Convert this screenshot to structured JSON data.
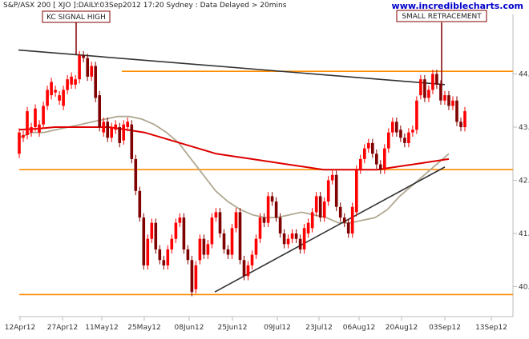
{
  "header": {
    "instrument": "S&P/ASX 200 [ XJO ]:DAILY:03Sep2012 17:20 Sydney : Data Delayed > 20mins",
    "brand": "www.incrediblecharts.com"
  },
  "chart_data": {
    "type": "candlestick",
    "title": "",
    "xlabel": "",
    "ylabel": "",
    "ylim": [
      39.8,
      44.6
    ],
    "x_ticks": [
      "12Apr12",
      "27Apr12",
      "11May12",
      "25May12",
      "08Jun12",
      "25Jun12",
      "09Jul12",
      "23Jul12",
      "06Aug12",
      "20Aug12",
      "03Sep12",
      "13Sep12"
    ],
    "y_ticks": [
      "44.00",
      "43.00",
      "42.00",
      "41.00",
      "40.00"
    ],
    "y_tick_values": [
      44,
      43,
      42,
      41,
      40
    ],
    "grid": false,
    "candles": [
      [
        42.5,
        42.9
      ],
      [
        42.8,
        42.85
      ],
      [
        42.85,
        43.3
      ],
      [
        42.9,
        43.0
      ],
      [
        43.0,
        43.35
      ],
      [
        42.9,
        43.05
      ],
      [
        43.05,
        43.4
      ],
      [
        43.4,
        43.7
      ],
      [
        43.6,
        43.85
      ],
      [
        43.65,
        43.7
      ],
      [
        43.5,
        43.6
      ],
      [
        43.4,
        43.7
      ],
      [
        43.7,
        43.9
      ],
      [
        43.8,
        43.95
      ],
      [
        43.8,
        43.9
      ],
      [
        43.9,
        44.35
      ],
      [
        44.35,
        44.3
      ],
      [
        44.3,
        43.95
      ],
      [
        43.95,
        44.15
      ],
      [
        44.15,
        43.55
      ],
      [
        43.6,
        43.0
      ],
      [
        42.9,
        43.1
      ],
      [
        43.1,
        42.8
      ],
      [
        42.8,
        43.0
      ],
      [
        42.95,
        43.05
      ],
      [
        43.0,
        42.7
      ],
      [
        42.75,
        43.05
      ],
      [
        43.0,
        43.1
      ],
      [
        43.05,
        42.4
      ],
      [
        42.4,
        41.8
      ],
      [
        41.8,
        41.3
      ],
      [
        41.3,
        40.4
      ],
      [
        40.4,
        40.9
      ],
      [
        40.9,
        41.2
      ],
      [
        41.2,
        40.7
      ],
      [
        40.7,
        40.5
      ],
      [
        40.5,
        40.4
      ],
      [
        40.4,
        40.7
      ],
      [
        40.7,
        40.9
      ],
      [
        40.9,
        41.2
      ],
      [
        41.2,
        41.3
      ],
      [
        41.3,
        40.7
      ],
      [
        40.7,
        40.5
      ],
      [
        40.5,
        39.9
      ],
      [
        39.95,
        40.4
      ],
      [
        40.5,
        40.9
      ],
      [
        40.9,
        40.6
      ],
      [
        40.6,
        40.8
      ],
      [
        40.8,
        41.3
      ],
      [
        41.3,
        41.4
      ],
      [
        41.4,
        41.0
      ],
      [
        41.0,
        40.7
      ],
      [
        40.7,
        40.6
      ],
      [
        40.6,
        41.1
      ],
      [
        41.1,
        41.4
      ],
      [
        41.4,
        40.5
      ],
      [
        40.5,
        40.2
      ],
      [
        40.2,
        40.4
      ],
      [
        40.4,
        40.6
      ],
      [
        40.6,
        40.9
      ],
      [
        40.9,
        41.3
      ],
      [
        41.3,
        41.2
      ],
      [
        41.2,
        41.7
      ],
      [
        41.7,
        41.6
      ],
      [
        41.6,
        41.3
      ],
      [
        41.3,
        41.0
      ],
      [
        41.0,
        40.8
      ],
      [
        40.8,
        40.9
      ],
      [
        40.9,
        41.0
      ],
      [
        41.0,
        40.9
      ],
      [
        40.9,
        40.7
      ],
      [
        40.7,
        41.1
      ],
      [
        41.0,
        41.2
      ],
      [
        41.1,
        41.4
      ],
      [
        41.4,
        41.7
      ],
      [
        41.7,
        41.3
      ],
      [
        41.3,
        41.6
      ],
      [
        41.6,
        42.0
      ],
      [
        42.0,
        42.1
      ],
      [
        42.1,
        41.5
      ],
      [
        41.5,
        41.3
      ],
      [
        41.3,
        41.2
      ],
      [
        41.2,
        41.0
      ],
      [
        41.0,
        41.5
      ],
      [
        41.4,
        42.2
      ],
      [
        42.2,
        42.4
      ],
      [
        42.4,
        42.6
      ],
      [
        42.6,
        42.7
      ],
      [
        42.7,
        42.5
      ],
      [
        42.5,
        42.3
      ],
      [
        42.3,
        42.2
      ],
      [
        42.2,
        42.6
      ],
      [
        42.6,
        42.9
      ],
      [
        42.9,
        43.1
      ],
      [
        43.1,
        42.9
      ],
      [
        42.95,
        42.8
      ],
      [
        42.8,
        42.7
      ],
      [
        42.7,
        42.9
      ],
      [
        42.9,
        42.95
      ],
      [
        42.95,
        43.5
      ],
      [
        43.6,
        43.9
      ],
      [
        43.9,
        43.55
      ],
      [
        43.55,
        43.7
      ],
      [
        43.7,
        44.0
      ],
      [
        44.0,
        43.8
      ],
      [
        43.8,
        43.5
      ],
      [
        43.5,
        43.6
      ],
      [
        43.6,
        43.4
      ],
      [
        43.4,
        43.5
      ],
      [
        43.5,
        43.1
      ],
      [
        43.1,
        43.0
      ],
      [
        43.0,
        43.3
      ]
    ],
    "moving_average_1": [
      42.8,
      42.9,
      42.9,
      42.95,
      43.0,
      43.05,
      43.1,
      43.15,
      43.2,
      43.2,
      43.15,
      43.05,
      42.9,
      42.7,
      42.4,
      42.1,
      41.8,
      41.6,
      41.45,
      41.35,
      41.3,
      41.3,
      41.35,
      41.4,
      41.35,
      41.3,
      41.2,
      41.2,
      41.25,
      41.3,
      41.45,
      41.7,
      41.9,
      42.1,
      42.3,
      42.5
    ],
    "moving_average_2": [
      42.95,
      42.97,
      43.0,
      43.0,
      43.0,
      43.0,
      42.95,
      42.9,
      42.8,
      42.7,
      42.6,
      42.5,
      42.45,
      42.4,
      42.35,
      42.3,
      42.25,
      42.2,
      42.2,
      42.2,
      42.2,
      42.25,
      42.3,
      42.35,
      42.4
    ],
    "trend_lines": [
      {
        "from": [
          "12Apr12",
          44.45
        ],
        "to": [
          "03Sep12",
          43.8
        ],
        "color": "#333333"
      },
      {
        "from": [
          "25Jun12",
          39.9
        ],
        "to": [
          "03Sep12",
          42.25
        ],
        "color": "#333333"
      }
    ],
    "horizontal_levels": [
      {
        "y": 44.05,
        "color": "#ff8c00"
      },
      {
        "y": 42.2,
        "color": "#ff8c00"
      },
      {
        "y": 39.85,
        "color": "#ff8c00"
      }
    ],
    "annotations": [
      {
        "text": "KC SIGNAL HIGH"
      },
      {
        "text": "SMALL RETRACEMENT"
      }
    ],
    "colors": {
      "up": "#ff0000",
      "down": "#800000",
      "ma_fast": "#b0a890",
      "ma_slow": "#dd0000",
      "axis": "#bbbbbb",
      "level": "#ff8c00",
      "trend": "#333333",
      "annotation_border": "#800000"
    }
  }
}
